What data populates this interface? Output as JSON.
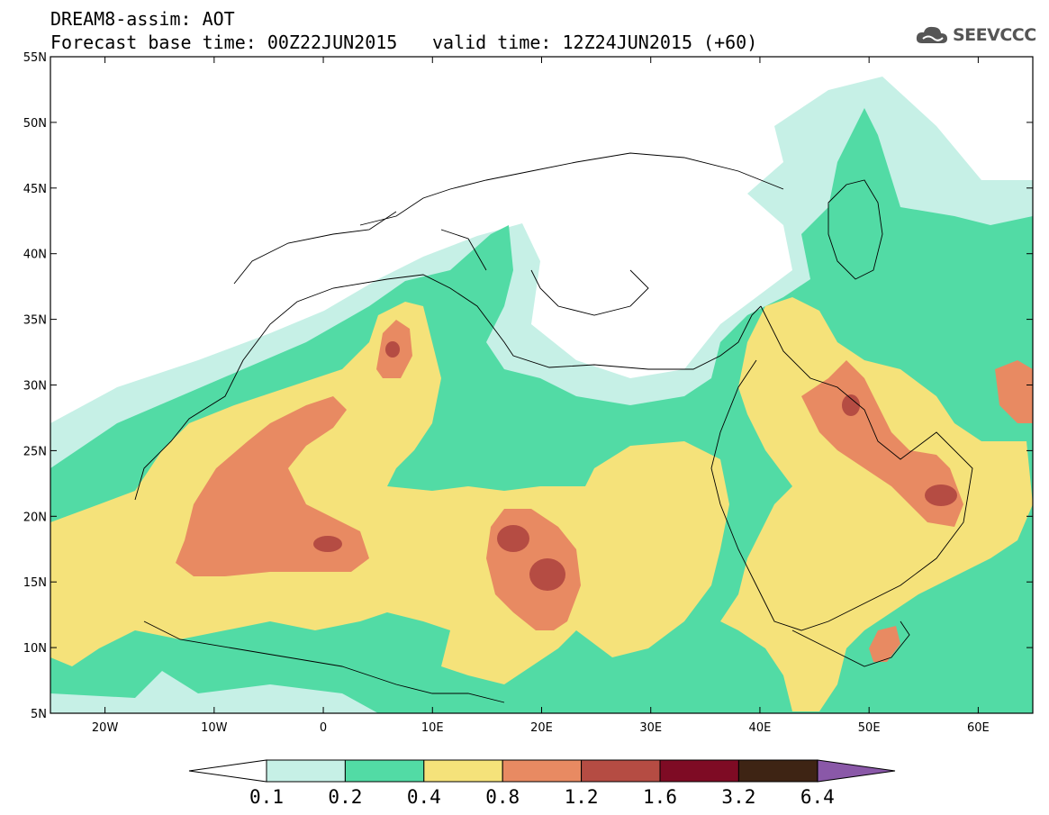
{
  "header": {
    "title": "DREAM8-assim: AOT",
    "base_time": "Forecast base time: 00Z22JUN2015",
    "valid_time": "valid time: 12Z24JUN2015 (+60)"
  },
  "logo": {
    "text": "SEEVCCC",
    "icon": "cloud-icon"
  },
  "map": {
    "lat_labels": [
      "55N",
      "50N",
      "45N",
      "40N",
      "35N",
      "30N",
      "25N",
      "20N",
      "15N",
      "10N",
      "5N"
    ],
    "lon_labels": [
      "20W",
      "10W",
      "0",
      "10E",
      "20E",
      "30E",
      "40E",
      "50E",
      "60E"
    ],
    "lon_range": [
      -25,
      65
    ],
    "lat_range": [
      5,
      55
    ]
  },
  "colorbar": {
    "labels": [
      "0.1",
      "0.2",
      "0.4",
      "0.8",
      "1.2",
      "1.6",
      "3.2",
      "6.4"
    ],
    "colors": [
      "#ffffff",
      "#c6f0e6",
      "#52dba5",
      "#f5e27a",
      "#e88a62",
      "#b54c43",
      "#7e0b24",
      "#3e2414",
      "#8a58a8"
    ]
  },
  "aot_colors": {
    "0.1-0.2": "#c6f0e6",
    "0.2-0.4": "#52dba5",
    "0.4-0.8": "#f5e27a",
    "0.8-1.2": "#e88a62",
    "1.2-1.6": "#b54c43"
  }
}
